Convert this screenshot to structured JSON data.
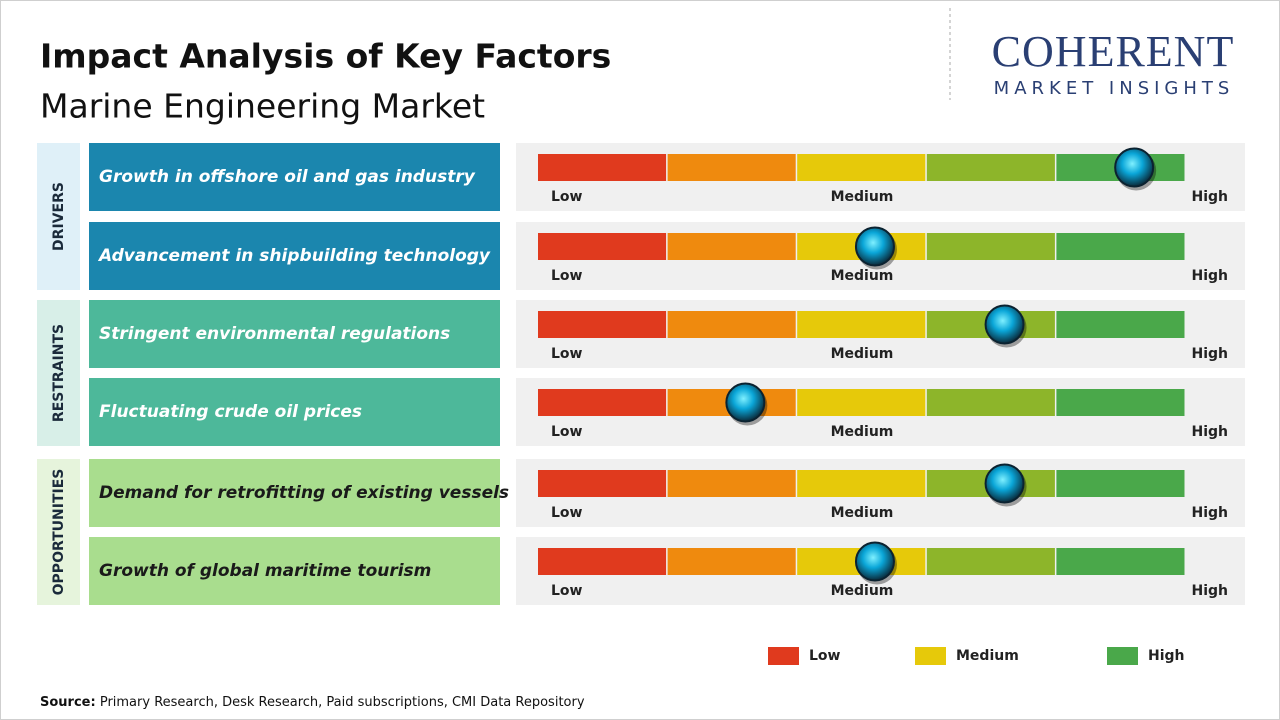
{
  "header": {
    "title": "Impact Analysis of Key Factors",
    "subtitle": "Marine Engineering Market"
  },
  "logo": {
    "name": "COHERENT",
    "tagline": "MARKET INSIGHTS"
  },
  "chart_data": {
    "type": "gauge",
    "xlim": [
      0,
      5
    ],
    "scale_labels": [
      "Low",
      "Medium",
      "High"
    ],
    "segment_colors": [
      "#e03a1e",
      "#ef8a0e",
      "#e6c90a",
      "#8db52a",
      "#4aa84a"
    ],
    "groups": [
      {
        "name": "DRIVERS",
        "color": "#1b86ae",
        "band_color": "#dff0f8",
        "text_color": "#ffffff",
        "factors": [
          {
            "label": "Growth in offshore oil and gas industry",
            "value": 4.6
          },
          {
            "label": "Advancement in shipbuilding technology",
            "value": 2.6
          }
        ]
      },
      {
        "name": "RESTRAINTS",
        "color": "#4db89a",
        "band_color": "#d8efe8",
        "text_color": "#ffffff",
        "factors": [
          {
            "label": "Stringent environmental regulations",
            "value": 3.6
          },
          {
            "label": "Fluctuating crude oil prices",
            "value": 1.6
          }
        ]
      },
      {
        "name": "OPPORTUNITIES",
        "color": "#a9dd8e",
        "band_color": "#e6f4dc",
        "text_color": "#1a1a1a",
        "factors": [
          {
            "label": "Demand for retrofitting of existing vessels",
            "value": 3.6
          },
          {
            "label": "Growth of global maritime tourism",
            "value": 2.6
          }
        ]
      }
    ]
  },
  "legend": [
    {
      "label": "Low",
      "color": "#e03a1e"
    },
    {
      "label": "Medium",
      "color": "#e6c90a"
    },
    {
      "label": "High",
      "color": "#4aa84a"
    }
  ],
  "source": {
    "label": "Source:",
    "text": "Primary Research, Desk Research, Paid subscriptions, CMI Data Repository"
  }
}
